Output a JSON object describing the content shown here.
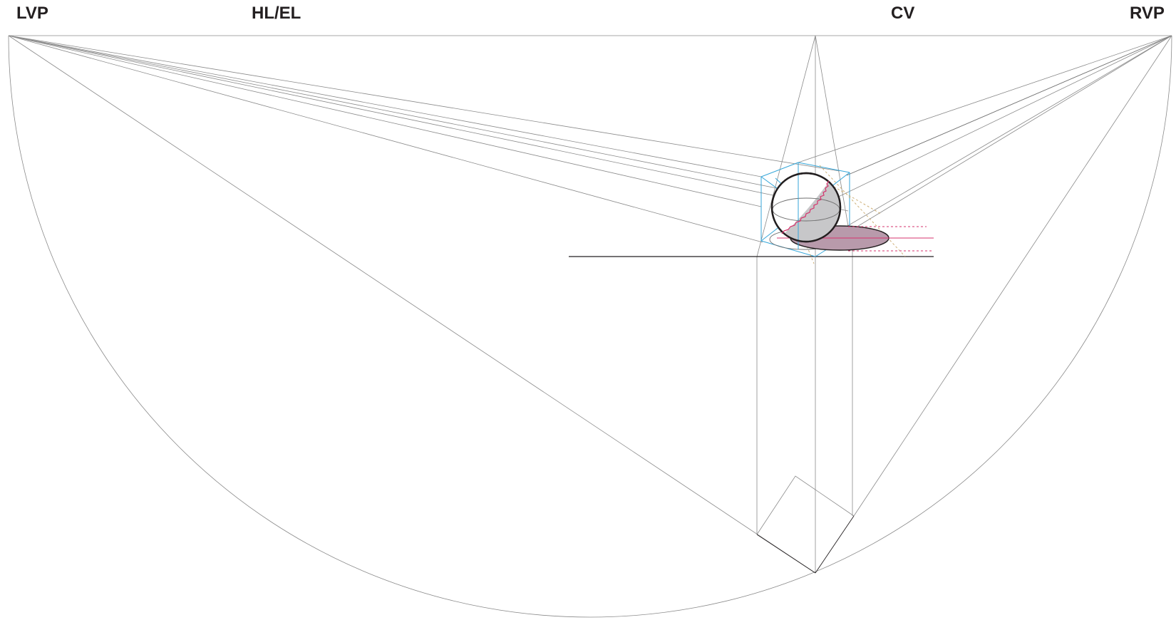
{
  "labels": {
    "lvp": "LVP",
    "hl_el": "HL/EL",
    "cv": "CV",
    "rvp": "RVP"
  },
  "colors": {
    "construction_line": "#8a8a8a",
    "outline": "#231f20",
    "guide_blue": "#35a6d9",
    "terminator_pink": "#d6336c",
    "shadow_fill": "#b89aab",
    "sphere_fill": "#c7c7c9"
  }
}
